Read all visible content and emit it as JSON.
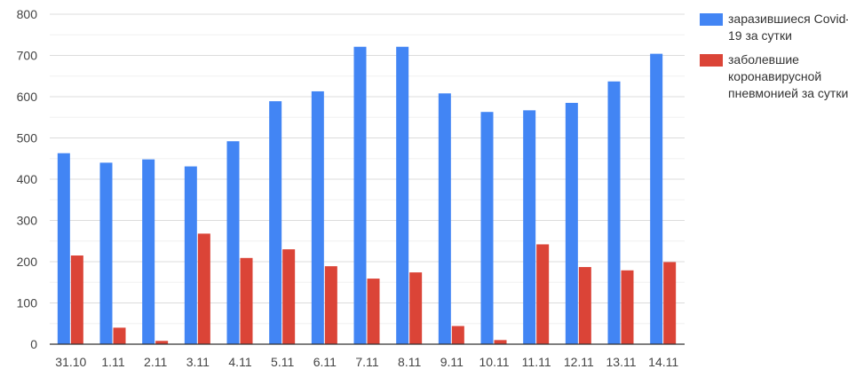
{
  "chart_data": {
    "type": "bar",
    "categories": [
      "31.10",
      "1.11",
      "2.11",
      "3.11",
      "4.11",
      "5.11",
      "6.11",
      "7.11",
      "8.11",
      "9.11",
      "10.11",
      "11.11",
      "12.11",
      "13.11",
      "14.11"
    ],
    "series": [
      {
        "name": "заразившиеся Covid-19 за сутки",
        "color": "#4285f4",
        "values": [
          463,
          440,
          448,
          431,
          492,
          589,
          613,
          721,
          721,
          608,
          563,
          567,
          585,
          637,
          704
        ]
      },
      {
        "name": "заболевшие коронавирусной пневмонией за сутки",
        "color": "#db4437",
        "values": [
          215,
          40,
          8,
          268,
          209,
          230,
          189,
          159,
          174,
          44,
          10,
          242,
          187,
          179,
          199
        ]
      }
    ],
    "ylim": [
      0,
      800
    ],
    "yticks": [
      "0",
      "100",
      "200",
      "300",
      "400",
      "500",
      "600",
      "700",
      "800"
    ],
    "grid": true,
    "legend": "right"
  }
}
